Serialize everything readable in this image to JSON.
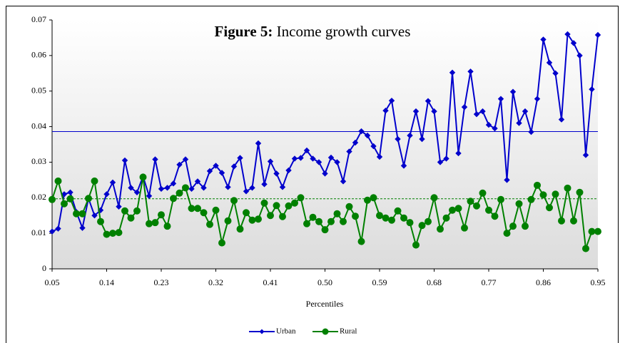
{
  "chart_data": {
    "type": "line",
    "title_prefix": "Figure 5:",
    "title": "Income growth curves",
    "x_label": "Percentiles",
    "x": [
      0.05,
      0.06,
      0.07,
      0.08,
      0.09,
      0.1,
      0.11,
      0.12,
      0.13,
      0.14,
      0.15,
      0.16,
      0.17,
      0.18,
      0.19,
      0.2,
      0.21,
      0.22,
      0.23,
      0.24,
      0.25,
      0.26,
      0.27,
      0.28,
      0.29,
      0.3,
      0.31,
      0.32,
      0.33,
      0.34,
      0.35,
      0.36,
      0.37,
      0.38,
      0.39,
      0.4,
      0.41,
      0.42,
      0.43,
      0.44,
      0.45,
      0.46,
      0.47,
      0.48,
      0.49,
      0.5,
      0.51,
      0.52,
      0.53,
      0.54,
      0.55,
      0.56,
      0.57,
      0.58,
      0.59,
      0.6,
      0.61,
      0.62,
      0.63,
      0.64,
      0.65,
      0.66,
      0.67,
      0.68,
      0.69,
      0.7,
      0.71,
      0.72,
      0.73,
      0.74,
      0.75,
      0.76,
      0.77,
      0.78,
      0.79,
      0.8,
      0.81,
      0.82,
      0.83,
      0.84,
      0.85,
      0.86,
      0.87,
      0.88,
      0.89,
      0.9,
      0.91,
      0.92,
      0.93,
      0.94,
      0.95
    ],
    "xlim": [
      0.05,
      0.95
    ],
    "xticks": [
      0.05,
      0.14,
      0.23,
      0.32,
      0.41,
      {
        "value": 0.5,
        "label": "0.50"
      },
      0.59,
      0.68,
      0.77,
      0.86,
      0.95
    ],
    "ylim": [
      0,
      0.07
    ],
    "yticks": [
      0,
      0.01,
      0.02,
      0.03,
      0.04,
      0.05,
      0.06,
      0.07
    ],
    "series": [
      {
        "name": "Urban",
        "color": "#0000cc",
        "marker": "diamond",
        "values": [
          0.0105,
          0.0113,
          0.021,
          0.0215,
          0.016,
          0.0115,
          0.0198,
          0.015,
          0.0165,
          0.021,
          0.0243,
          0.0175,
          0.0305,
          0.0228,
          0.0215,
          0.026,
          0.0205,
          0.0308,
          0.0225,
          0.0228,
          0.024,
          0.0293,
          0.0308,
          0.0225,
          0.0246,
          0.0228,
          0.0275,
          0.029,
          0.027,
          0.023,
          0.0288,
          0.0312,
          0.0218,
          0.0228,
          0.0353,
          0.0238,
          0.0302,
          0.0268,
          0.023,
          0.0277,
          0.031,
          0.0312,
          0.0333,
          0.031,
          0.03,
          0.0268,
          0.0313,
          0.03,
          0.0246,
          0.033,
          0.0355,
          0.0387,
          0.0375,
          0.0345,
          0.0315,
          0.0445,
          0.0473,
          0.0365,
          0.029,
          0.0375,
          0.0443,
          0.0365,
          0.0472,
          0.0443,
          0.03,
          0.031,
          0.0552,
          0.0325,
          0.0455,
          0.0555,
          0.0435,
          0.0443,
          0.0405,
          0.0395,
          0.0478,
          0.025,
          0.0498,
          0.041,
          0.0443,
          0.0385,
          0.0478,
          0.0645,
          0.058,
          0.055,
          0.042,
          0.066,
          0.0635,
          0.06,
          0.032,
          0.0505,
          0.0658
        ]
      },
      {
        "name": "Rural",
        "color": "#008000",
        "marker": "circle",
        "values": [
          0.0195,
          0.0247,
          0.0183,
          0.0197,
          0.0155,
          0.0155,
          0.0198,
          0.0247,
          0.0133,
          0.0097,
          0.01,
          0.0102,
          0.0163,
          0.0143,
          0.0163,
          0.0258,
          0.0127,
          0.013,
          0.0152,
          0.012,
          0.0198,
          0.0213,
          0.0228,
          0.017,
          0.017,
          0.0158,
          0.0125,
          0.0165,
          0.0073,
          0.0135,
          0.0192,
          0.0112,
          0.0158,
          0.0137,
          0.014,
          0.0185,
          0.015,
          0.0178,
          0.0147,
          0.0177,
          0.0185,
          0.02,
          0.0127,
          0.0145,
          0.0133,
          0.011,
          0.0133,
          0.0155,
          0.0133,
          0.0175,
          0.0148,
          0.0077,
          0.0193,
          0.02,
          0.015,
          0.0143,
          0.0137,
          0.0163,
          0.0143,
          0.013,
          0.0067,
          0.0122,
          0.0133,
          0.02,
          0.0112,
          0.0143,
          0.0165,
          0.017,
          0.0115,
          0.019,
          0.0177,
          0.0213,
          0.0165,
          0.0148,
          0.0195,
          0.01,
          0.012,
          0.0183,
          0.012,
          0.0195,
          0.0235,
          0.0208,
          0.0172,
          0.021,
          0.0135,
          0.0227,
          0.0135,
          0.0215,
          0.0057,
          0.0105,
          0.0105
        ]
      }
    ],
    "reference_lines": [
      {
        "value": 0.0386,
        "color": "#0000cc",
        "style": "solid"
      },
      {
        "value": 0.0197,
        "color": "#008000",
        "style": "dashed"
      }
    ],
    "grid": false,
    "legend": "bottom"
  }
}
